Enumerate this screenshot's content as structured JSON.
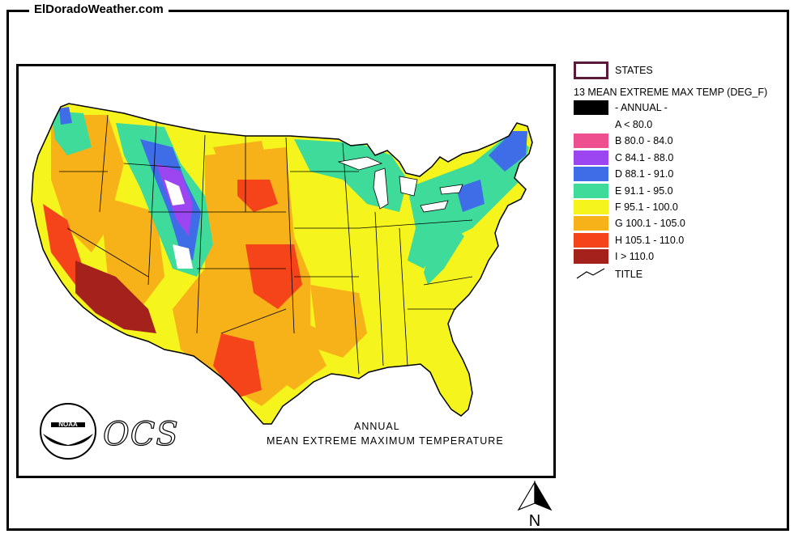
{
  "site_title": "ElDoradoWeather.com",
  "map": {
    "title_line1": "ANNUAL",
    "title_line2": "MEAN EXTREME MAXIMUM TEMPERATURE",
    "logo_text": "OCS",
    "logo_badge": "NOAA",
    "north_label": "N"
  },
  "legend": {
    "states_label": "STATES",
    "layer_title": "13 MEAN EXTREME MAX TEMP (DEG_F)",
    "annual_label": "- ANNUAL -",
    "classes": [
      {
        "label": "A < 80.0",
        "color": "#ffffff"
      },
      {
        "label": "B 80.0 - 84.0",
        "color": "#ee4f8f"
      },
      {
        "label": "C 84.1 - 88.0",
        "color": "#9b46f0"
      },
      {
        "label": "D 88.1 - 91.0",
        "color": "#3f6de8"
      },
      {
        "label": "E 91.1 - 95.0",
        "color": "#3fdb9a"
      },
      {
        "label": "F 95.1 - 100.0",
        "color": "#f5f51d"
      },
      {
        "label": "G 100.1 - 105.0",
        "color": "#f7b219"
      },
      {
        "label": "H 105.1 - 110.0",
        "color": "#f5431a"
      },
      {
        "label": "I > 110.0",
        "color": "#a4221b"
      }
    ],
    "title_label": "TITLE"
  }
}
